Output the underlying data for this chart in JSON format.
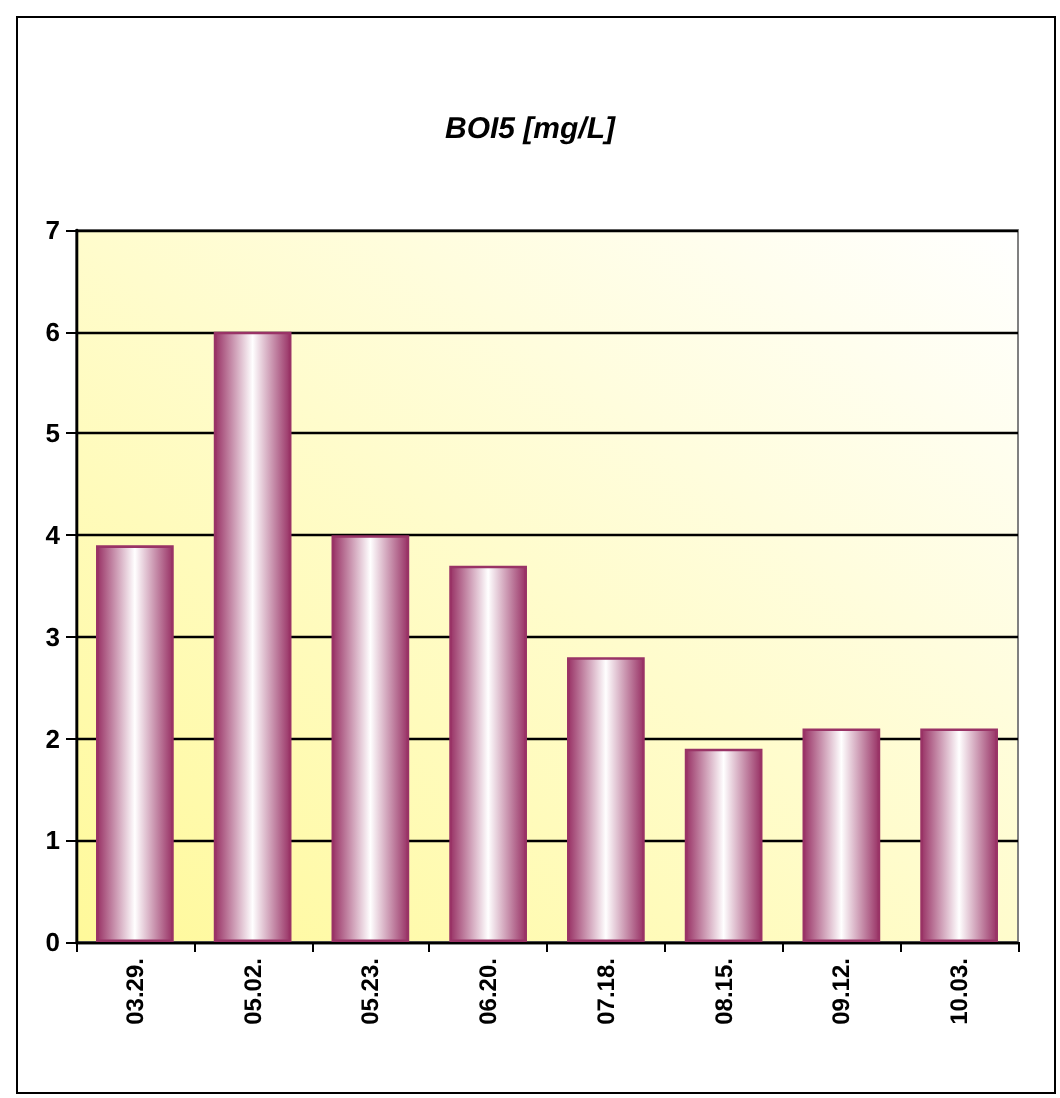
{
  "chart_data": {
    "type": "bar",
    "title": "BOI5 [mg/L]",
    "categories": [
      "03.29.",
      "05.02.",
      "05.23.",
      "06.20.",
      "07.18.",
      "08.15.",
      "09.12.",
      "10.03."
    ],
    "values": [
      3.9,
      6,
      4,
      3.7,
      2.8,
      1.9,
      2.1,
      2.1
    ],
    "color": "#993366",
    "ylim": [
      0,
      7
    ],
    "yticks": [
      0,
      1,
      2,
      3,
      4,
      5,
      6,
      7
    ],
    "grid": "y"
  }
}
